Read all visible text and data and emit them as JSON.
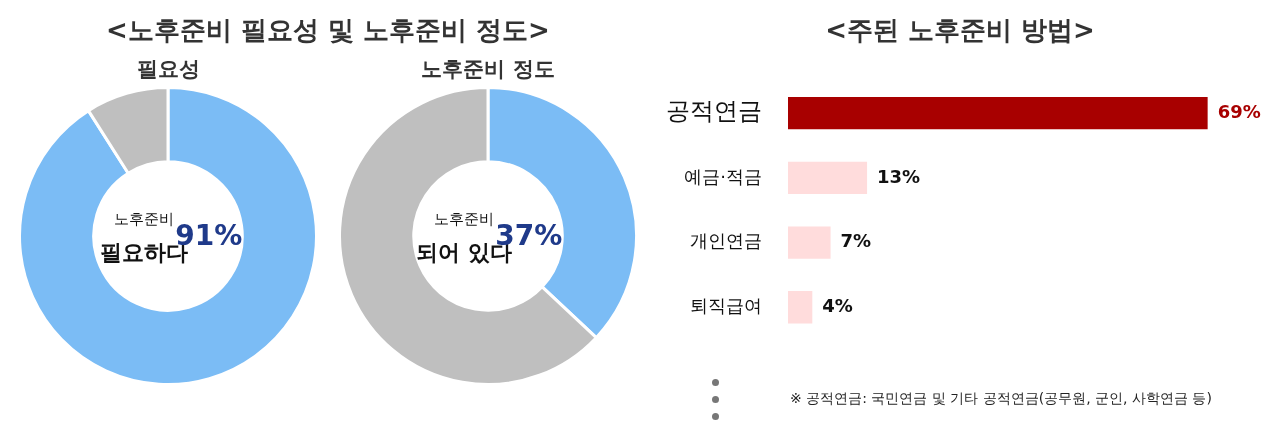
{
  "chart_data": [
    {
      "type": "donut",
      "title": "<노후준비 필요성 및 노후준비 정도>",
      "subtitle": "필요성",
      "categories": [
        null,
        null
      ],
      "values": [
        91,
        9
      ],
      "colors": [
        "#7bbcf5",
        "#bfbfbf"
      ],
      "value_labels": [
        "91%",
        null
      ],
      "annotations": [
        "노후준비",
        "필요하다"
      ],
      "legend": false
    },
    {
      "type": "donut",
      "title": "노후준비 정도",
      "categories": [
        null,
        null
      ],
      "values": [
        37,
        63
      ],
      "colors": [
        "#7bbcf5",
        "#bfbfbf"
      ],
      "value_labels": [
        "37%",
        null
      ],
      "annotations": [
        "노후준비",
        "되어 있다"
      ],
      "legend": false
    },
    {
      "type": "bar",
      "orientation": "horizontal",
      "title": "<주된 노후준비 방법>",
      "categories": [
        "공적연금",
        "예금·적금",
        "개인연금",
        "퇴직급여"
      ],
      "values": [
        69,
        13,
        7,
        4
      ],
      "colors": [
        "#a80000",
        "#ffdcdc",
        "#ffdcdc",
        "#ffdcdc"
      ],
      "value_labels": [
        "69%",
        "13%",
        "7%",
        "4%"
      ],
      "annotations": [
        "※ 공적연금: 국민연금 및 기타 공적연금(공무원, 군인, 사학연금 등)"
      ],
      "legend": false
    }
  ]
}
